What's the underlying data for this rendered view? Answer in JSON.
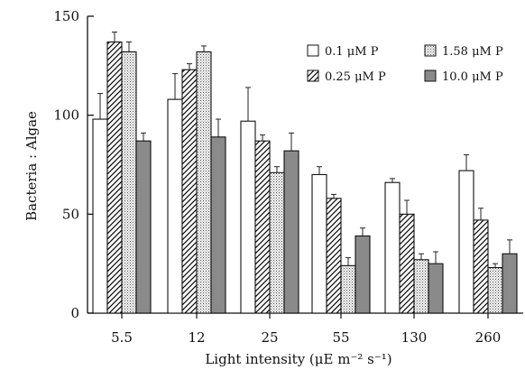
{
  "chart_data": {
    "type": "bar",
    "xlabel": "Light intensity (μE m⁻² s⁻¹)",
    "ylabel": "Bacteria : Algae",
    "ylim": [
      0,
      150
    ],
    "yticks": [
      "0",
      "50",
      "100",
      "150"
    ],
    "categories": [
      "5.5",
      "12",
      "25",
      "55",
      "130",
      "260"
    ],
    "legend_position": "top-right",
    "grid": false,
    "series": [
      {
        "name": "0.1 μM P",
        "pattern": "open",
        "values": [
          98,
          108,
          97,
          70,
          66,
          72
        ],
        "errors": [
          13,
          13,
          17,
          4,
          2,
          8
        ]
      },
      {
        "name": "0.25 μM P",
        "pattern": "hatched",
        "values": [
          137,
          123,
          87,
          58,
          50,
          47
        ],
        "errors": [
          5,
          3,
          3,
          2,
          7,
          6
        ]
      },
      {
        "name": "1.58 μM P",
        "pattern": "dotted",
        "values": [
          132,
          132,
          71,
          24,
          27,
          23
        ],
        "errors": [
          5,
          3,
          3,
          4,
          3,
          2
        ]
      },
      {
        "name": "10.0 μM P",
        "pattern": "solid",
        "values": [
          87,
          89,
          82,
          39,
          25,
          30
        ],
        "errors": [
          4,
          9,
          9,
          4,
          6,
          7
        ]
      }
    ]
  }
}
